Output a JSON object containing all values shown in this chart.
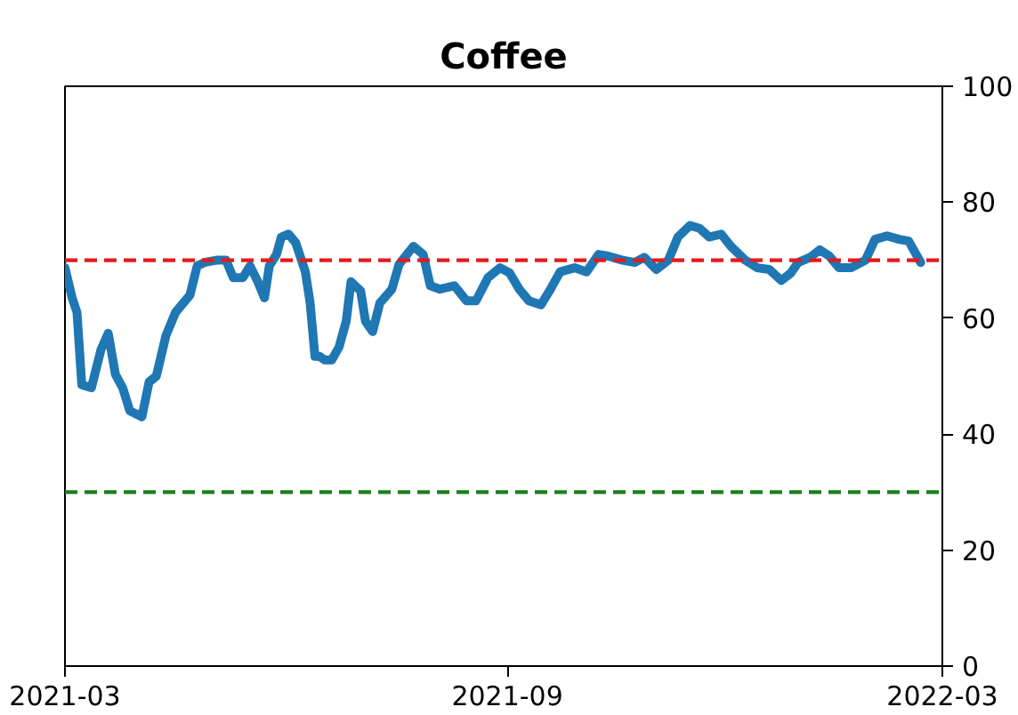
{
  "chart_data": {
    "type": "line",
    "title": "Coffee",
    "x": [
      "2021-03-01",
      "2021-03-04",
      "2021-03-06",
      "2021-03-08",
      "2021-03-12",
      "2021-03-16",
      "2021-03-19",
      "2021-03-22",
      "2021-03-25",
      "2021-03-28",
      "2021-04-02",
      "2021-04-05",
      "2021-04-08",
      "2021-04-12",
      "2021-04-16",
      "2021-04-22",
      "2021-04-25",
      "2021-04-28",
      "2021-05-03",
      "2021-05-07",
      "2021-05-10",
      "2021-05-14",
      "2021-05-17",
      "2021-05-20",
      "2021-05-23",
      "2021-05-25",
      "2021-05-28",
      "2021-05-30",
      "2021-06-02",
      "2021-06-05",
      "2021-06-09",
      "2021-06-11",
      "2021-06-13",
      "2021-06-15",
      "2021-06-17",
      "2021-06-20",
      "2021-06-23",
      "2021-06-26",
      "2021-06-28",
      "2021-07-02",
      "2021-07-04",
      "2021-07-07",
      "2021-07-10",
      "2021-07-15",
      "2021-07-18",
      "2021-07-24",
      "2021-07-28",
      "2021-07-31",
      "2021-08-04",
      "2021-08-10",
      "2021-08-15",
      "2021-08-19",
      "2021-08-24",
      "2021-08-29",
      "2021-09-02",
      "2021-09-06",
      "2021-09-10",
      "2021-09-15",
      "2021-09-19",
      "2021-09-23",
      "2021-09-29",
      "2021-10-04",
      "2021-10-09",
      "2021-10-13",
      "2021-10-19",
      "2021-10-24",
      "2021-10-28",
      "2021-11-02",
      "2021-11-07",
      "2021-11-11",
      "2021-11-16",
      "2021-11-20",
      "2021-11-24",
      "2021-11-29",
      "2021-12-03",
      "2021-12-09",
      "2021-12-14",
      "2021-12-19",
      "2021-12-24",
      "2021-12-28",
      "2021-12-31",
      "2022-01-05",
      "2022-01-09",
      "2022-01-13",
      "2022-01-17",
      "2022-01-22",
      "2022-01-28",
      "2022-02-01",
      "2022-02-06",
      "2022-02-11",
      "2022-02-15",
      "2022-02-20"
    ],
    "series": [
      {
        "color": "#1f77b4",
        "values": [
          68.7,
          63.5,
          61,
          48.5,
          48,
          54.6,
          57.4,
          50.3,
          48,
          44,
          43,
          49,
          50,
          57,
          61,
          64,
          69,
          69.6,
          70,
          70,
          67,
          67,
          69,
          66.5,
          63.5,
          69,
          71,
          74,
          74.5,
          73,
          68,
          62.6,
          53.4,
          53.4,
          52.8,
          52.8,
          55,
          59.5,
          66.3,
          64.7,
          59.5,
          57.7,
          62.6,
          65,
          69.3,
          72.4,
          71,
          65.6,
          65,
          65.6,
          63,
          63,
          67,
          68.7,
          67.8,
          65,
          63,
          62.3,
          65,
          68,
          68.7,
          68,
          71,
          70.7,
          70,
          69.6,
          70.5,
          68.4,
          70,
          74,
          76,
          75.5,
          74,
          74.5,
          72.4,
          70,
          68.7,
          68.4,
          66.5,
          67.8,
          69.6,
          70.5,
          71.8,
          70.7,
          68.7,
          68.7,
          70,
          73.6,
          74.2,
          73.6,
          73.3,
          69.6
        ]
      }
    ],
    "xlim": [
      "2021-03-01",
      "2022-03-01"
    ],
    "xticks": [
      {
        "value": "2021-03-01",
        "label": "2021-03"
      },
      {
        "value": "2021-09-01",
        "label": "2021-09"
      },
      {
        "value": "2022-03-01",
        "label": "2022-03"
      }
    ],
    "ylim": [
      0,
      100
    ],
    "yticks": [
      0,
      20,
      40,
      60,
      80,
      100
    ],
    "grid": false,
    "ref_lines": [
      {
        "axis": "y",
        "value": 70,
        "color": "#e41a1c",
        "line_style": "dashed"
      },
      {
        "axis": "y",
        "value": 30,
        "color": "#1a7f1a",
        "line_style": "dashed"
      }
    ]
  }
}
